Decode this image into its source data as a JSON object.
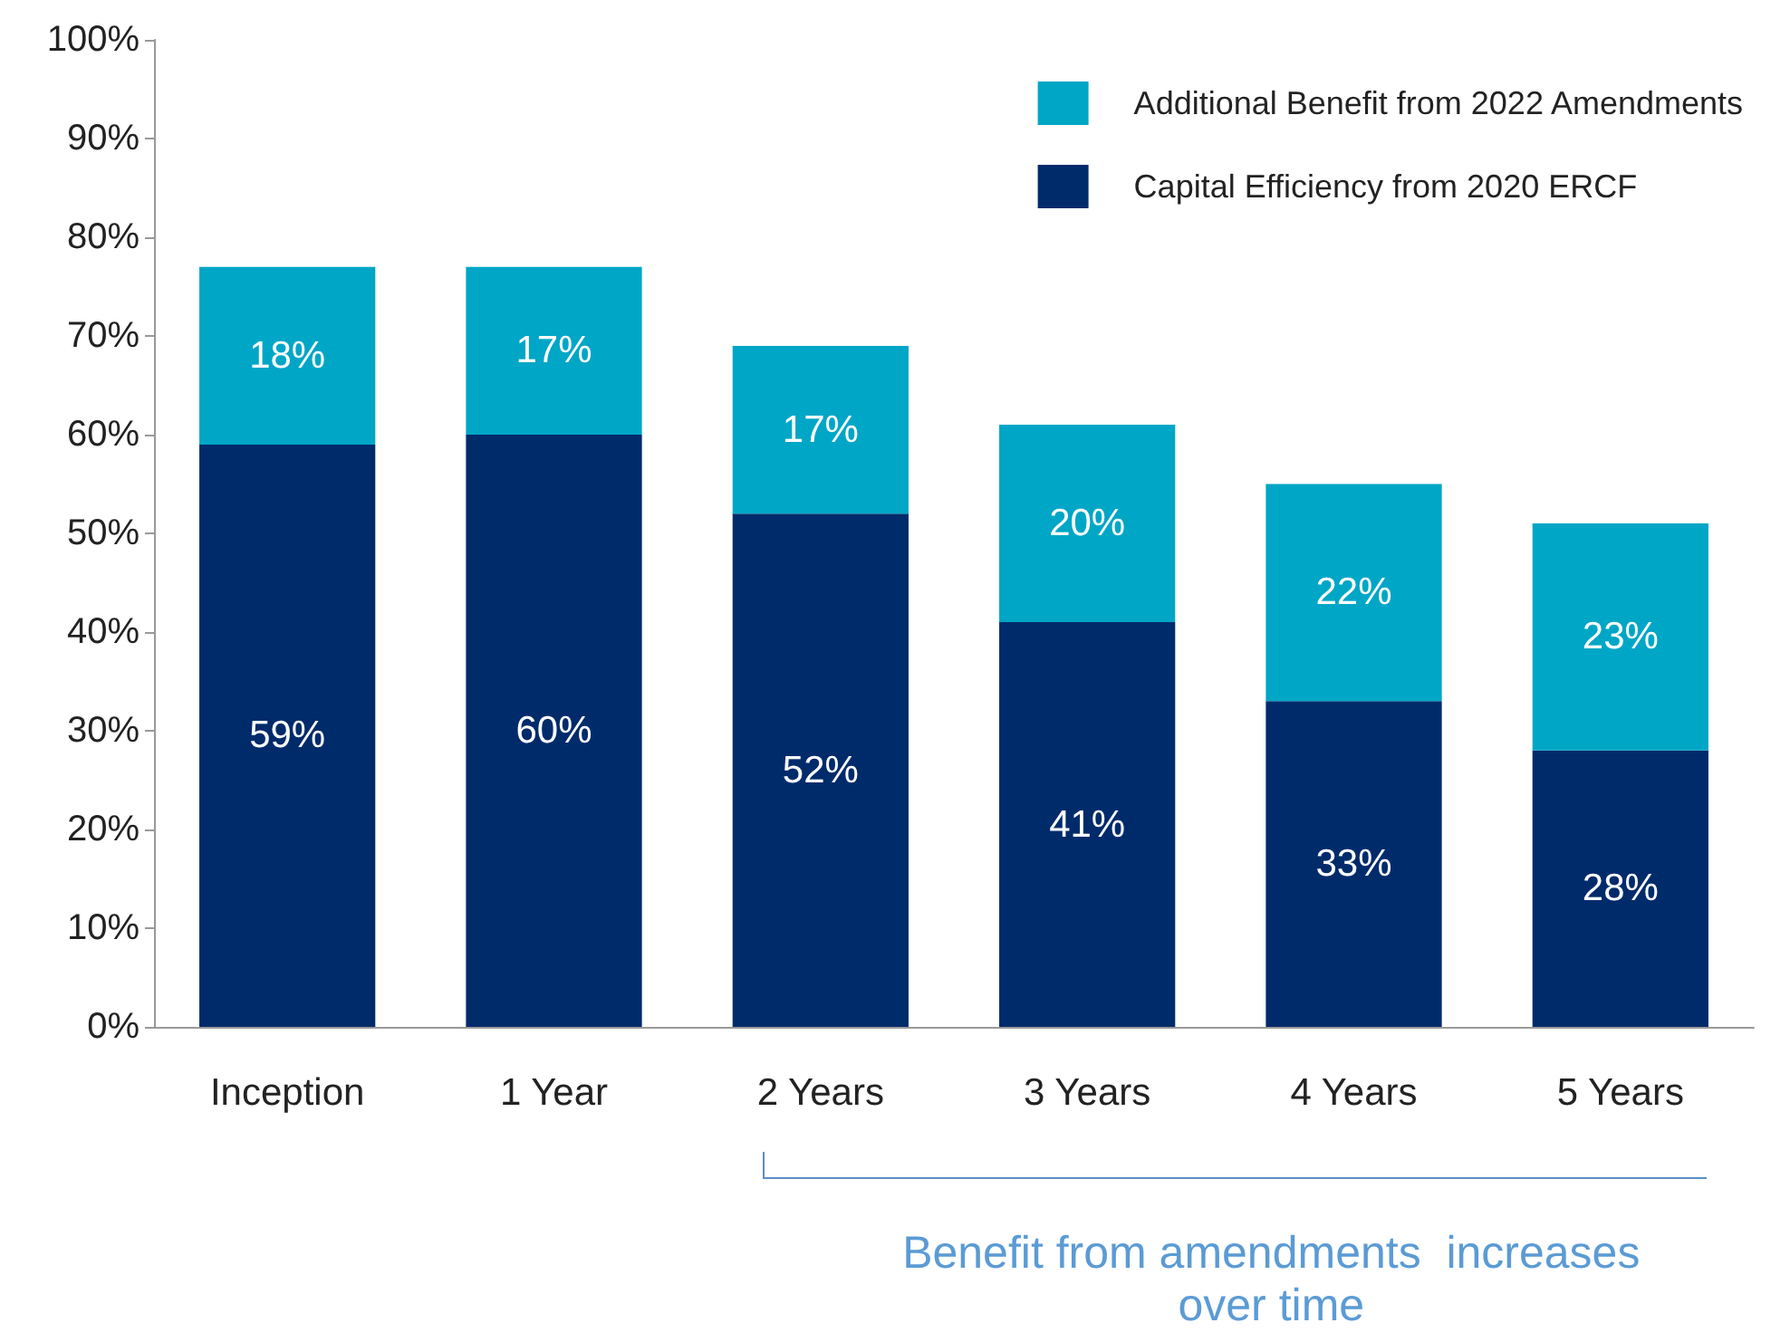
{
  "chart_data": {
    "type": "bar",
    "stacked": true,
    "categories": [
      "Inception",
      "1 Year",
      "2 Years",
      "3 Years",
      "4 Years",
      "5 Years"
    ],
    "series": [
      {
        "name": "Capital Efficiency from 2020 ERCF",
        "color": "#002b6b",
        "values": [
          59,
          60,
          52,
          41,
          33,
          28
        ],
        "value_labels": [
          "59%",
          "60%",
          "52%",
          "41%",
          "33%",
          "28%"
        ]
      },
      {
        "name": "Additional Benefit from 2022 Amendments",
        "color": "#00a6c6",
        "values": [
          18,
          17,
          17,
          20,
          22,
          23
        ],
        "value_labels": [
          "18%",
          "17%",
          "17%",
          "20%",
          "22%",
          "23%"
        ]
      }
    ],
    "ylim": [
      0,
      100
    ],
    "yticks": [
      {
        "value": 0,
        "label": "0%"
      },
      {
        "value": 10,
        "label": "10%"
      },
      {
        "value": 20,
        "label": "20%"
      },
      {
        "value": 30,
        "label": "30%"
      },
      {
        "value": 40,
        "label": "40%"
      },
      {
        "value": 50,
        "label": "50%"
      },
      {
        "value": 60,
        "label": "60%"
      },
      {
        "value": 70,
        "label": "70%"
      },
      {
        "value": 80,
        "label": "80%"
      },
      {
        "value": 90,
        "label": "90%"
      },
      {
        "value": 100,
        "label": "100%"
      }
    ],
    "grid": false,
    "legend": "top right",
    "annotations": [
      "Benefit from amendments  increases over time"
    ]
  }
}
